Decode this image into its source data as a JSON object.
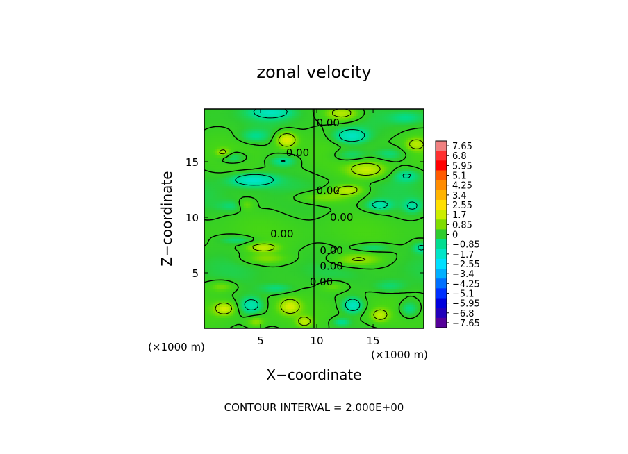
{
  "chart_data": {
    "type": "heatmap",
    "title": "zonal velocity",
    "xlabel": "X−coordinate",
    "ylabel": "Z−coordinate",
    "x_unit": "(×1000 m)",
    "z_unit": "(×1000 m)",
    "xlim": [
      0,
      19.5
    ],
    "ylim": [
      0,
      19.75
    ],
    "x_ticks": [
      5,
      10,
      15
    ],
    "z_ticks": [
      5,
      10,
      15
    ],
    "x_tick_labels": [
      "5",
      "10",
      "15"
    ],
    "z_tick_labels": [
      "5",
      "10",
      "15"
    ],
    "colorbar": {
      "min": -7.65,
      "max": 7.65,
      "labels": [
        "7.65",
        "6.8",
        "5.95",
        "5.1",
        "4.25",
        "3.4",
        "2.55",
        "1.7",
        "0.85",
        "0",
        "−0.85",
        "−1.7",
        "−2.55",
        "−3.4",
        "−4.25",
        "−5.1",
        "−5.95",
        "−6.8",
        "−7.65"
      ],
      "colors": [
        "#f08080",
        "#ff3030",
        "#ff0000",
        "#ff5a00",
        "#ff8c00",
        "#ffb400",
        "#ffe000",
        "#ccee00",
        "#80dd00",
        "#2ecc2e",
        "#00dd90",
        "#00e5c8",
        "#00e0ff",
        "#00b0ff",
        "#0070ff",
        "#0030ff",
        "#0000dd",
        "#2200bb",
        "#550099"
      ]
    },
    "contour_interval": "2.000E+00",
    "contour_labels": [
      {
        "x": 11.0,
        "z": 18.5,
        "text": "0.00"
      },
      {
        "x": 8.3,
        "z": 15.8,
        "text": "0.00"
      },
      {
        "x": 11.0,
        "z": 12.4,
        "text": "0.00"
      },
      {
        "x": 12.2,
        "z": 10.0,
        "text": "0.00"
      },
      {
        "x": 6.9,
        "z": 8.5,
        "text": "0.00"
      },
      {
        "x": 11.3,
        "z": 7.0,
        "text": "0.00"
      },
      {
        "x": 11.3,
        "z": 5.6,
        "text": "0.00"
      },
      {
        "x": 10.4,
        "z": 4.2,
        "text": "0.00"
      }
    ]
  },
  "footer": {
    "contour_interval_text": "CONTOUR INTERVAL = 2.000E+00"
  }
}
